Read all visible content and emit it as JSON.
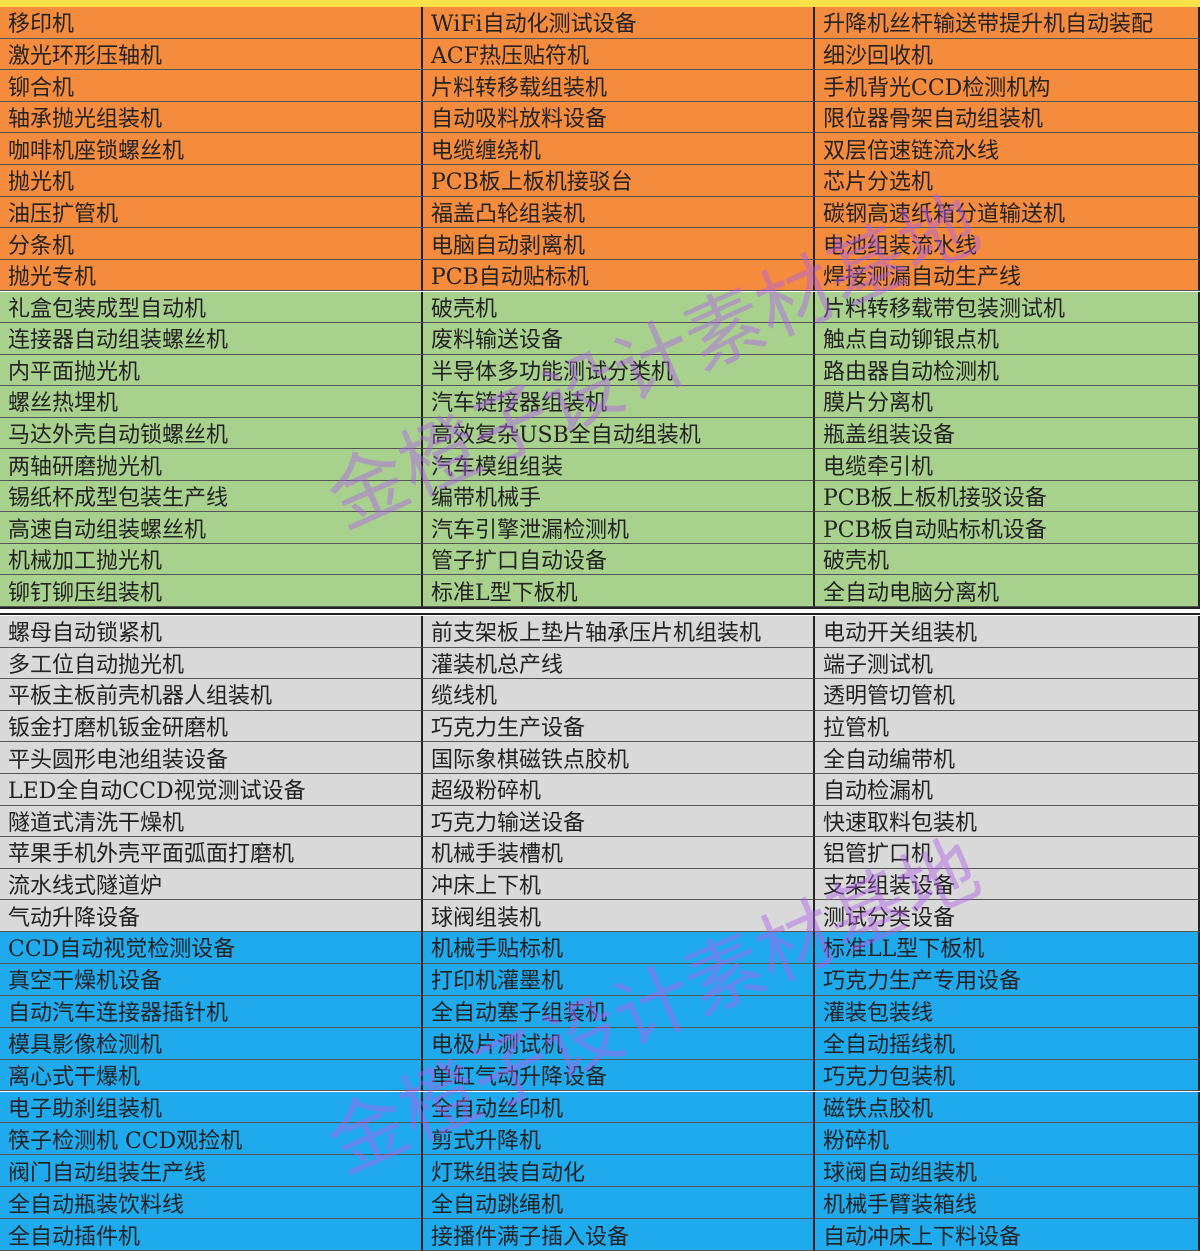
{
  "watermark": "金橙子设计素材基地",
  "table": {
    "sections": [
      {
        "color": "#f58b3c",
        "rows": [
          [
            "移印机",
            "WiFi自动化测试设备",
            "升降机丝杆输送带提升机自动装配"
          ],
          [
            "激光环形压轴机",
            "ACF热压贴符机",
            "细沙回收机"
          ],
          [
            "铆合机",
            "片料转移载组装机",
            "手机背光CCD检测机构"
          ],
          [
            "轴承抛光组装机",
            "自动吸料放料设备",
            "限位器骨架自动组装机"
          ],
          [
            "咖啡机座锁螺丝机",
            "电缆缠绕机",
            "双层倍速链流水线"
          ],
          [
            "抛光机",
            "PCB板上板机接驳台",
            "芯片分选机"
          ],
          [
            "油压扩管机",
            "福盖凸轮组装机",
            "碳钢高速纸箱分道输送机"
          ],
          [
            "分条机",
            "电脑自动剥离机",
            "电池组装流水线"
          ],
          [
            "抛光专机",
            "PCB自动贴标机",
            "焊接测漏自动生产线"
          ]
        ]
      },
      {
        "color": "#a9d18e",
        "rows": [
          [
            "礼盒包装成型自动机",
            "破壳机",
            "片料转移载带包装测试机"
          ],
          [
            "连接器自动组装螺丝机",
            "废料输送设备",
            "触点自动铆银点机"
          ],
          [
            "内平面抛光机",
            "半导体多功能测试分类机",
            "路由器自动检测机"
          ],
          [
            "螺丝热埋机",
            "汽车链接器组装机",
            "膜片分离机"
          ],
          [
            "马达外壳自动锁螺丝机",
            "高效复杂USB全自动组装机",
            "瓶盖组装设备"
          ],
          [
            "两轴研磨抛光机",
            "汽车模组组装",
            "电缆牵引机"
          ],
          [
            "锡纸杯成型包装生产线",
            "编带机械手",
            "PCB板上板机接驳设备"
          ],
          [
            "高速自动组装螺丝机",
            "汽车引擎泄漏检测机",
            "PCB板自动贴标机设备"
          ],
          [
            "机械加工抛光机",
            "管子扩口自动设备",
            "破壳机"
          ],
          [
            "铆钉铆压组装机",
            "标准L型下板机",
            "全自动电脑分离机"
          ]
        ]
      },
      {
        "color": "#d9d9d9",
        "rows": [
          [
            "螺母自动锁紧机",
            "前支架板上垫片轴承压片机组装机",
            "电动开关组装机"
          ],
          [
            "多工位自动抛光机",
            "灌装机总产线",
            "端子测试机"
          ],
          [
            "平板主板前壳机器人组装机",
            "缆线机",
            "透明管切管机"
          ],
          [
            "钣金打磨机钣金研磨机",
            "巧克力生产设备",
            "拉管机"
          ],
          [
            "平头圆形电池组装设备",
            "国际象棋磁铁点胶机",
            "全自动编带机"
          ],
          [
            "LED全自动CCD视觉测试设备",
            "超级粉碎机",
            "自动检漏机"
          ],
          [
            "隧道式清洗干燥机",
            "巧克力输送设备",
            "快速取料包装机"
          ],
          [
            "苹果手机外壳平面弧面打磨机",
            "机械手装槽机",
            "铝管扩口机"
          ],
          [
            "流水线式隧道炉",
            "冲床上下机",
            "支架组装设备"
          ],
          [
            "气动升降设备",
            "球阀组装机",
            "测试分类设备"
          ]
        ]
      },
      {
        "color": "#1faaee",
        "rows": [
          [
            "CCD自动视觉检测设备",
            "机械手贴标机",
            "标准LL型下板机"
          ],
          [
            "真空干燥机设备",
            "打印机灌墨机",
            "巧克力生产专用设备"
          ],
          [
            "自动汽车连接器插针机",
            "全自动塞子组装机",
            "灌装包装线"
          ],
          [
            "模具影像检测机",
            "电极片测试机",
            "全自动摇线机"
          ],
          [
            "离心式干爆机",
            "单缸气动升降设备",
            "巧克力包装机"
          ],
          [
            "电子助刹组装机",
            "全自动丝印机",
            "磁铁点胶机"
          ],
          [
            "筷子检测机 CCD观捡机",
            "剪式升降机",
            "粉碎机"
          ],
          [
            "阀门自动组装生产线",
            "灯珠组装自动化",
            "球阀自动组装机"
          ],
          [
            "全自动瓶装饮料线",
            "全自动跳绳机",
            "机械手臂装箱线"
          ],
          [
            "全自动插件机",
            "接播件满子插入设备",
            "自动冲床上下料设备"
          ]
        ]
      }
    ]
  }
}
